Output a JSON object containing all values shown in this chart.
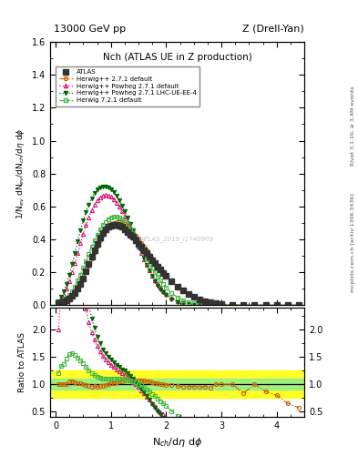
{
  "title_top": "13000 GeV pp",
  "title_top_right": "Z (Drell-Yan)",
  "title_main": "Nch (ATLAS UE in Z production)",
  "ylabel_main": "1/N$_{ev}$ dN$_{ev}$/dN$_{ch}$/d$\\eta$ d$\\phi$",
  "ylabel_ratio": "Ratio to ATLAS",
  "xlabel": "N$_{ch}$/d$\\eta$ d$\\phi$",
  "right_label_top": "Rivet 3.1.10, ≥ 3.4M events",
  "right_label_bottom": "mcplots.cern.ch [arXiv:1306.3436]",
  "watermark": "ATLAS_2019_I1740909",
  "ylim_main": [
    0.0,
    1.6
  ],
  "ylim_ratio": [
    0.4,
    2.4
  ],
  "xlim": [
    -0.1,
    4.5
  ],
  "atlas_x": [
    0.05,
    0.1,
    0.15,
    0.2,
    0.25,
    0.3,
    0.35,
    0.4,
    0.45,
    0.5,
    0.55,
    0.6,
    0.65,
    0.7,
    0.75,
    0.8,
    0.85,
    0.9,
    0.95,
    1.0,
    1.05,
    1.1,
    1.15,
    1.2,
    1.25,
    1.3,
    1.35,
    1.4,
    1.45,
    1.5,
    1.55,
    1.6,
    1.65,
    1.7,
    1.75,
    1.8,
    1.85,
    1.9,
    1.95,
    2.0,
    2.1,
    2.2,
    2.3,
    2.4,
    2.5,
    2.6,
    2.7,
    2.8,
    2.9,
    3.0,
    3.2,
    3.4,
    3.6,
    3.8,
    4.0,
    4.2,
    4.4
  ],
  "atlas_y": [
    0.01,
    0.015,
    0.022,
    0.03,
    0.04,
    0.055,
    0.075,
    0.1,
    0.13,
    0.165,
    0.205,
    0.25,
    0.295,
    0.335,
    0.375,
    0.41,
    0.44,
    0.46,
    0.475,
    0.485,
    0.49,
    0.49,
    0.485,
    0.475,
    0.46,
    0.445,
    0.43,
    0.415,
    0.395,
    0.375,
    0.355,
    0.335,
    0.315,
    0.295,
    0.275,
    0.255,
    0.235,
    0.215,
    0.195,
    0.178,
    0.145,
    0.115,
    0.09,
    0.068,
    0.05,
    0.036,
    0.025,
    0.017,
    0.011,
    0.007,
    0.003,
    0.0012,
    0.0004,
    0.00015,
    5e-05,
    2e-05,
    7e-06
  ],
  "hw271_x": [
    0.05,
    0.1,
    0.15,
    0.2,
    0.25,
    0.3,
    0.35,
    0.4,
    0.45,
    0.5,
    0.55,
    0.6,
    0.65,
    0.7,
    0.75,
    0.8,
    0.85,
    0.9,
    0.95,
    1.0,
    1.05,
    1.1,
    1.15,
    1.2,
    1.25,
    1.3,
    1.35,
    1.4,
    1.45,
    1.5,
    1.55,
    1.6,
    1.65,
    1.7,
    1.75,
    1.8,
    1.85,
    1.9,
    1.95,
    2.0,
    2.1,
    2.2,
    2.3,
    2.4,
    2.5,
    2.6,
    2.7,
    2.8,
    2.9,
    3.0,
    3.2,
    3.4,
    3.6,
    3.8,
    4.0,
    4.2,
    4.4
  ],
  "hw271_y": [
    0.01,
    0.015,
    0.022,
    0.03,
    0.042,
    0.058,
    0.078,
    0.102,
    0.132,
    0.165,
    0.202,
    0.242,
    0.282,
    0.322,
    0.36,
    0.395,
    0.428,
    0.455,
    0.477,
    0.492,
    0.502,
    0.507,
    0.507,
    0.503,
    0.493,
    0.48,
    0.464,
    0.446,
    0.425,
    0.403,
    0.38,
    0.356,
    0.332,
    0.308,
    0.284,
    0.261,
    0.238,
    0.216,
    0.196,
    0.176,
    0.142,
    0.112,
    0.086,
    0.065,
    0.048,
    0.034,
    0.024,
    0.016,
    0.011,
    0.007,
    0.003,
    0.001,
    0.0004,
    0.00013,
    4e-05,
    1.3e-05,
    4e-06
  ],
  "hw271p_x": [
    0.05,
    0.1,
    0.15,
    0.2,
    0.25,
    0.3,
    0.35,
    0.4,
    0.45,
    0.5,
    0.55,
    0.6,
    0.65,
    0.7,
    0.75,
    0.8,
    0.85,
    0.9,
    0.95,
    1.0,
    1.05,
    1.1,
    1.15,
    1.2,
    1.25,
    1.3,
    1.35,
    1.4,
    1.45,
    1.5,
    1.55,
    1.6,
    1.65,
    1.7,
    1.75,
    1.8,
    1.85,
    1.9,
    1.95,
    2.0,
    2.1,
    2.2,
    2.3,
    2.4,
    2.5,
    2.6,
    2.7,
    2.8,
    2.9,
    3.0,
    3.2,
    3.4,
    3.6,
    3.8,
    4.0,
    4.2,
    4.4
  ],
  "hw271p_y": [
    0.02,
    0.04,
    0.065,
    0.1,
    0.145,
    0.2,
    0.258,
    0.318,
    0.378,
    0.435,
    0.488,
    0.535,
    0.576,
    0.61,
    0.636,
    0.655,
    0.667,
    0.671,
    0.668,
    0.659,
    0.644,
    0.624,
    0.6,
    0.572,
    0.541,
    0.507,
    0.471,
    0.433,
    0.394,
    0.355,
    0.317,
    0.28,
    0.245,
    0.212,
    0.181,
    0.153,
    0.128,
    0.106,
    0.087,
    0.07,
    0.044,
    0.026,
    0.015,
    0.008,
    0.004,
    0.002,
    0.001,
    0.0005,
    0.0002,
    9e-05,
    3e-05,
    1e-05,
    3e-06,
    9e-07,
    3e-07,
    1e-07,
    3e-08
  ],
  "hw271lhc_x": [
    0.05,
    0.1,
    0.15,
    0.2,
    0.25,
    0.3,
    0.35,
    0.4,
    0.45,
    0.5,
    0.55,
    0.6,
    0.65,
    0.7,
    0.75,
    0.8,
    0.85,
    0.9,
    0.95,
    1.0,
    1.05,
    1.1,
    1.15,
    1.2,
    1.25,
    1.3,
    1.35,
    1.4,
    1.45,
    1.5,
    1.55,
    1.6,
    1.65,
    1.7,
    1.75,
    1.8,
    1.85,
    1.9,
    1.95,
    2.0,
    2.1,
    2.2,
    2.3,
    2.4,
    2.5,
    2.6,
    2.7,
    2.8,
    2.9,
    3.0,
    3.2,
    3.4,
    3.6,
    3.8,
    4.0,
    4.2,
    4.4
  ],
  "hw271lhc_y": [
    0.025,
    0.05,
    0.085,
    0.13,
    0.185,
    0.25,
    0.32,
    0.39,
    0.455,
    0.515,
    0.568,
    0.613,
    0.65,
    0.68,
    0.702,
    0.716,
    0.722,
    0.722,
    0.716,
    0.704,
    0.687,
    0.664,
    0.637,
    0.606,
    0.572,
    0.535,
    0.495,
    0.454,
    0.411,
    0.368,
    0.326,
    0.285,
    0.246,
    0.21,
    0.177,
    0.147,
    0.12,
    0.097,
    0.077,
    0.061,
    0.037,
    0.021,
    0.011,
    0.006,
    0.003,
    0.0015,
    0.0007,
    0.0003,
    0.00013,
    5e-05,
    1.5e-05,
    4e-06,
    1.2e-06,
    4e-07,
    1.2e-07,
    4e-08,
    1e-08
  ],
  "hw721_x": [
    0.05,
    0.1,
    0.15,
    0.2,
    0.25,
    0.3,
    0.35,
    0.4,
    0.45,
    0.5,
    0.55,
    0.6,
    0.65,
    0.7,
    0.75,
    0.8,
    0.85,
    0.9,
    0.95,
    1.0,
    1.05,
    1.1,
    1.15,
    1.2,
    1.25,
    1.3,
    1.35,
    1.4,
    1.45,
    1.5,
    1.55,
    1.6,
    1.65,
    1.7,
    1.75,
    1.8,
    1.85,
    1.9,
    1.95,
    2.0,
    2.1,
    2.2,
    2.3,
    2.4,
    2.5,
    2.6,
    2.7,
    2.8,
    2.9,
    3.0,
    3.2,
    3.4,
    3.6,
    3.8,
    4.0,
    4.2,
    4.4
  ],
  "hw721_y": [
    0.012,
    0.02,
    0.03,
    0.044,
    0.062,
    0.086,
    0.115,
    0.149,
    0.187,
    0.228,
    0.27,
    0.313,
    0.354,
    0.393,
    0.428,
    0.459,
    0.486,
    0.507,
    0.523,
    0.534,
    0.539,
    0.538,
    0.532,
    0.521,
    0.506,
    0.486,
    0.463,
    0.437,
    0.409,
    0.379,
    0.348,
    0.317,
    0.286,
    0.256,
    0.227,
    0.199,
    0.173,
    0.149,
    0.127,
    0.108,
    0.074,
    0.049,
    0.031,
    0.019,
    0.011,
    0.006,
    0.003,
    0.0016,
    0.0008,
    0.0004,
    0.00013,
    4e-05,
    1.2e-05,
    4e-06,
    1.2e-06,
    4e-07,
    1.2e-07
  ],
  "atlas_color": "#333333",
  "hw271_color": "#cc6600",
  "hw271p_color": "#dd1177",
  "hw271lhc_color": "#006600",
  "hw721_color": "#44bb44",
  "band_yellow_lo": 0.75,
  "band_yellow_hi": 1.25,
  "band_green_lo": 0.9,
  "band_green_hi": 1.1
}
